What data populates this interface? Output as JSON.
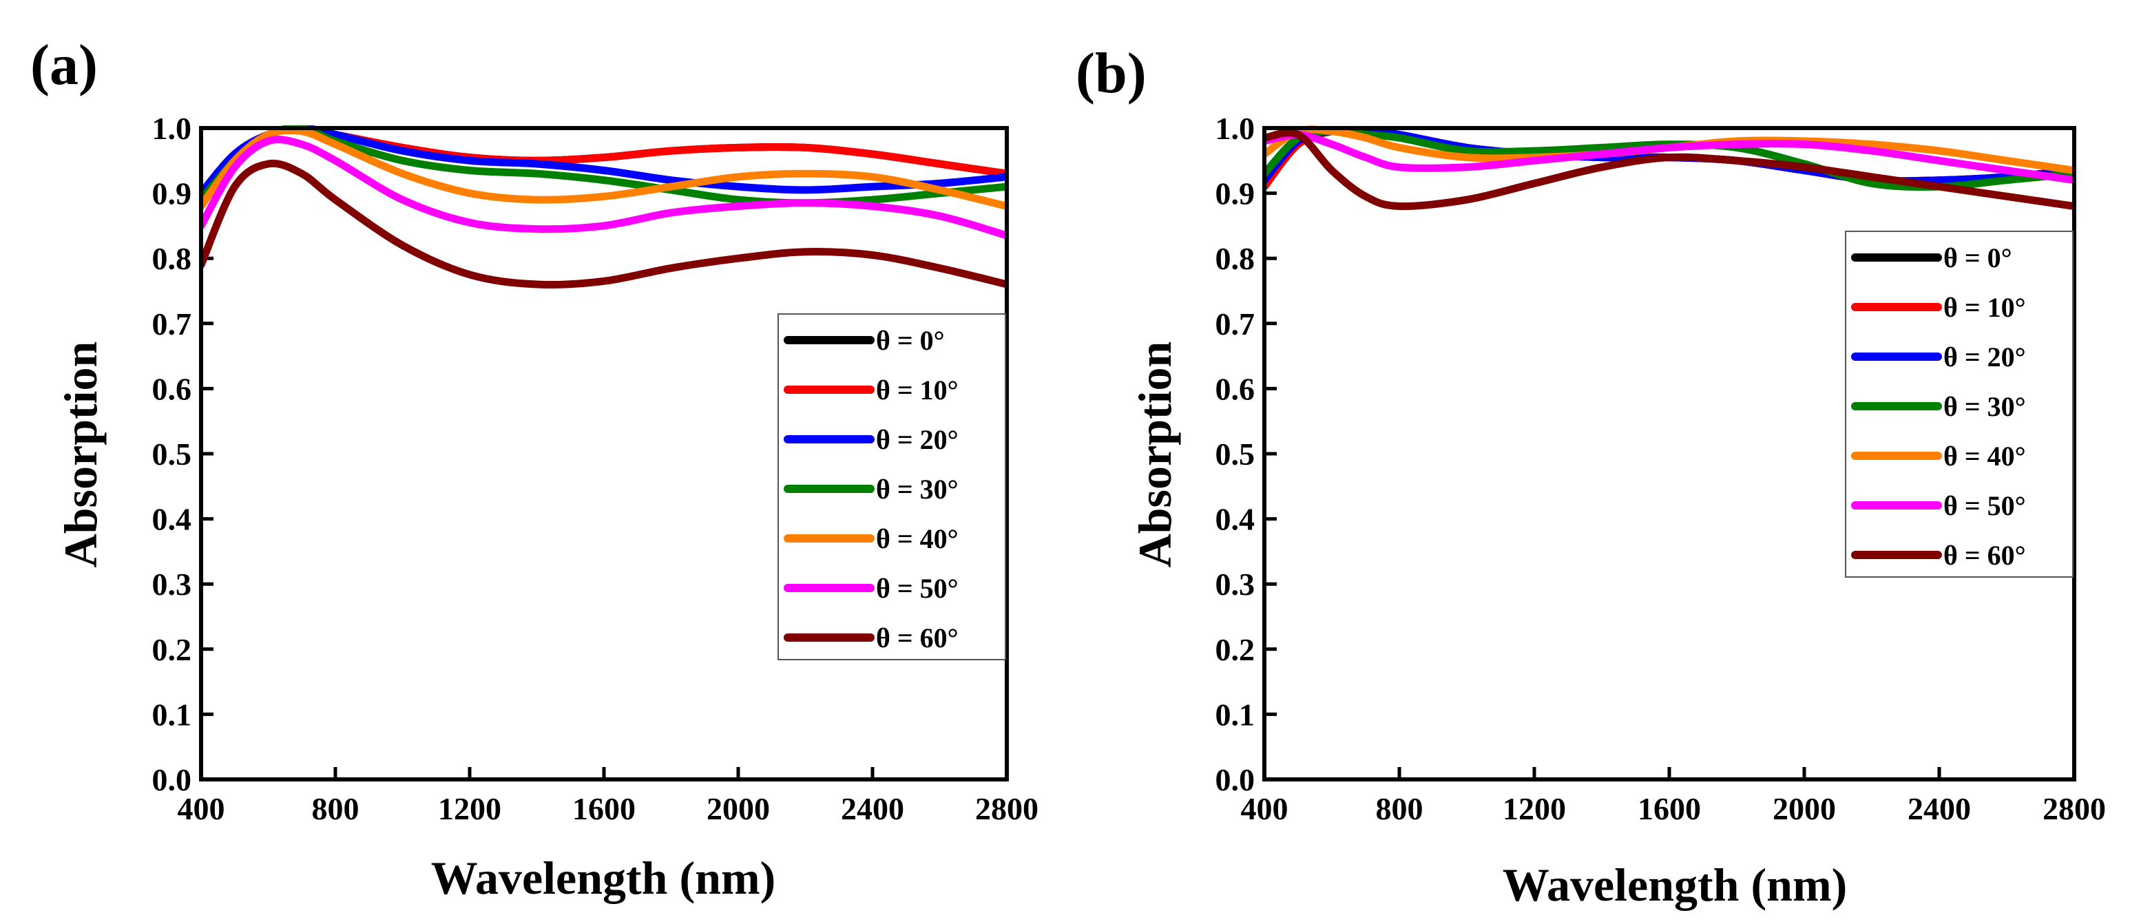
{
  "chart_data": [
    {
      "panel": "(a)",
      "type": "line",
      "xlabel": "Wavelength (nm)",
      "ylabel": "Absorption",
      "xlim": [
        400,
        2800
      ],
      "ylim": [
        0.0,
        1.0
      ],
      "xticks": [
        400,
        800,
        1200,
        1600,
        2000,
        2400,
        2800
      ],
      "yticks": [
        0.0,
        0.1,
        0.2,
        0.3,
        0.4,
        0.5,
        0.6,
        0.7,
        0.8,
        0.9,
        1.0
      ],
      "xtick_labels": [
        "400",
        "800",
        "1200",
        "1600",
        "2000",
        "2400",
        "2800"
      ],
      "ytick_labels": [
        "0.0",
        "0.1",
        "0.2",
        "0.3",
        "0.4",
        "0.5",
        "0.6",
        "0.7",
        "0.8",
        "0.9",
        "1.0"
      ],
      "legend_position": "right-middle",
      "series": [
        {
          "name": "θ = 0°",
          "color": "#000000",
          "x": [
            400,
            500,
            600,
            700,
            800,
            1000,
            1200,
            1400,
            1600,
            1800,
            2000,
            2200,
            2400,
            2600,
            2800
          ],
          "y": [
            0.9,
            0.96,
            0.99,
            1.0,
            0.99,
            0.97,
            0.955,
            0.95,
            0.955,
            0.965,
            0.97,
            0.97,
            0.96,
            0.945,
            0.93
          ]
        },
        {
          "name": "θ = 10°",
          "color": "#ff0000",
          "x": [
            400,
            500,
            600,
            700,
            800,
            1000,
            1200,
            1400,
            1600,
            1800,
            2000,
            2200,
            2400,
            2600,
            2800
          ],
          "y": [
            0.9,
            0.96,
            0.99,
            1.0,
            0.99,
            0.97,
            0.955,
            0.95,
            0.955,
            0.965,
            0.97,
            0.97,
            0.96,
            0.945,
            0.93
          ]
        },
        {
          "name": "θ = 20°",
          "color": "#0000ff",
          "x": [
            400,
            500,
            600,
            700,
            800,
            1000,
            1200,
            1400,
            1600,
            1800,
            2000,
            2200,
            2400,
            2600,
            2800
          ],
          "y": [
            0.9,
            0.96,
            0.99,
            1.0,
            0.99,
            0.965,
            0.95,
            0.945,
            0.935,
            0.92,
            0.91,
            0.905,
            0.91,
            0.915,
            0.925
          ]
        },
        {
          "name": "θ = 30°",
          "color": "#008000",
          "x": [
            400,
            500,
            600,
            700,
            800,
            1000,
            1200,
            1400,
            1600,
            1800,
            2000,
            2200,
            2400,
            2600,
            2800
          ],
          "y": [
            0.89,
            0.95,
            0.99,
            1.0,
            0.98,
            0.95,
            0.935,
            0.93,
            0.92,
            0.905,
            0.89,
            0.885,
            0.89,
            0.9,
            0.91
          ]
        },
        {
          "name": "θ = 40°",
          "color": "#ff8000",
          "x": [
            400,
            500,
            600,
            700,
            800,
            1000,
            1200,
            1400,
            1600,
            1800,
            2000,
            2200,
            2400,
            2600,
            2800
          ],
          "y": [
            0.88,
            0.95,
            0.99,
            0.995,
            0.975,
            0.93,
            0.9,
            0.89,
            0.895,
            0.91,
            0.925,
            0.93,
            0.925,
            0.905,
            0.88
          ]
        },
        {
          "name": "θ = 50°",
          "color": "#ff00ff",
          "x": [
            400,
            500,
            600,
            700,
            800,
            1000,
            1200,
            1400,
            1600,
            1800,
            2000,
            2200,
            2400,
            2600,
            2800
          ],
          "y": [
            0.85,
            0.94,
            0.98,
            0.975,
            0.95,
            0.89,
            0.855,
            0.845,
            0.85,
            0.87,
            0.88,
            0.885,
            0.88,
            0.865,
            0.835
          ]
        },
        {
          "name": "θ = 60°",
          "color": "#800000",
          "x": [
            400,
            500,
            600,
            700,
            800,
            1000,
            1200,
            1400,
            1600,
            1800,
            2000,
            2200,
            2400,
            2600,
            2800
          ],
          "y": [
            0.79,
            0.91,
            0.945,
            0.93,
            0.89,
            0.82,
            0.775,
            0.76,
            0.765,
            0.785,
            0.8,
            0.81,
            0.805,
            0.785,
            0.76
          ]
        }
      ]
    },
    {
      "panel": "(b)",
      "type": "line",
      "xlabel": "Wavelength (nm)",
      "ylabel": "Absorption",
      "xlim": [
        400,
        2800
      ],
      "ylim": [
        0.0,
        1.0
      ],
      "xticks": [
        400,
        800,
        1200,
        1600,
        2000,
        2400,
        2800
      ],
      "yticks": [
        0.0,
        0.1,
        0.2,
        0.3,
        0.4,
        0.5,
        0.6,
        0.7,
        0.8,
        0.9,
        1.0
      ],
      "xtick_labels": [
        "400",
        "800",
        "1200",
        "1600",
        "2000",
        "2400",
        "2800"
      ],
      "ytick_labels": [
        "0.0",
        "0.1",
        "0.2",
        "0.3",
        "0.4",
        "0.5",
        "0.6",
        "0.7",
        "0.8",
        "0.9",
        "1.0"
      ],
      "legend_position": "right-upper",
      "series": [
        {
          "name": "θ = 0°",
          "color": "#000000",
          "x": [
            400,
            500,
            600,
            700,
            800,
            1000,
            1200,
            1400,
            1600,
            1800,
            2000,
            2200,
            2400,
            2600,
            2800
          ],
          "y": [
            0.91,
            0.975,
            0.995,
            0.995,
            0.99,
            0.97,
            0.96,
            0.955,
            0.955,
            0.95,
            0.935,
            0.92,
            0.92,
            0.925,
            0.935
          ]
        },
        {
          "name": "θ = 10°",
          "color": "#ff0000",
          "x": [
            400,
            500,
            600,
            700,
            800,
            1000,
            1200,
            1400,
            1600,
            1800,
            2000,
            2200,
            2400,
            2600,
            2800
          ],
          "y": [
            0.91,
            0.975,
            0.995,
            0.995,
            0.99,
            0.97,
            0.96,
            0.955,
            0.955,
            0.95,
            0.935,
            0.92,
            0.92,
            0.925,
            0.935
          ]
        },
        {
          "name": "θ = 20°",
          "color": "#0000ff",
          "x": [
            400,
            500,
            600,
            700,
            800,
            1000,
            1200,
            1400,
            1600,
            1800,
            2000,
            2200,
            2400,
            2600,
            2800
          ],
          "y": [
            0.92,
            0.98,
            0.995,
            0.995,
            0.99,
            0.97,
            0.96,
            0.955,
            0.955,
            0.95,
            0.935,
            0.92,
            0.92,
            0.925,
            0.935
          ]
        },
        {
          "name": "θ = 30°",
          "color": "#008000",
          "x": [
            400,
            500,
            600,
            700,
            800,
            1000,
            1200,
            1400,
            1600,
            1800,
            2000,
            2200,
            2400,
            2600,
            2800
          ],
          "y": [
            0.93,
            0.985,
            0.995,
            0.99,
            0.985,
            0.965,
            0.965,
            0.97,
            0.975,
            0.97,
            0.945,
            0.915,
            0.91,
            0.92,
            0.93
          ]
        },
        {
          "name": "θ = 40°",
          "color": "#ff8000",
          "x": [
            400,
            500,
            600,
            700,
            800,
            1000,
            1200,
            1400,
            1600,
            1800,
            2000,
            2200,
            2400,
            2600,
            2800
          ],
          "y": [
            0.96,
            0.995,
            0.995,
            0.985,
            0.97,
            0.955,
            0.955,
            0.96,
            0.97,
            0.98,
            0.98,
            0.975,
            0.965,
            0.95,
            0.935
          ]
        },
        {
          "name": "θ = 50°",
          "color": "#ff00ff",
          "x": [
            400,
            500,
            600,
            700,
            800,
            1000,
            1200,
            1400,
            1600,
            1800,
            2000,
            2200,
            2400,
            2600,
            2800
          ],
          "y": [
            0.98,
            0.99,
            0.975,
            0.955,
            0.94,
            0.94,
            0.95,
            0.96,
            0.97,
            0.975,
            0.975,
            0.965,
            0.95,
            0.935,
            0.92
          ]
        },
        {
          "name": "θ = 60°",
          "color": "#800000",
          "x": [
            400,
            500,
            600,
            700,
            800,
            1000,
            1200,
            1400,
            1600,
            1800,
            2000,
            2200,
            2400,
            2600,
            2800
          ],
          "y": [
            0.985,
            0.99,
            0.935,
            0.895,
            0.88,
            0.89,
            0.915,
            0.94,
            0.955,
            0.95,
            0.94,
            0.925,
            0.91,
            0.895,
            0.88
          ]
        }
      ]
    }
  ]
}
